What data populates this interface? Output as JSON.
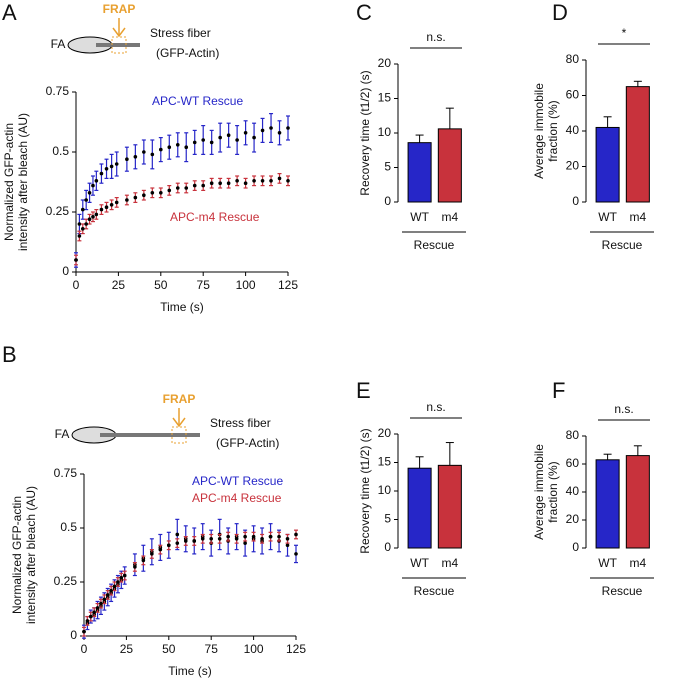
{
  "chart_data": [
    {
      "type": "scatter",
      "panel": "A",
      "xlabel": "Time (s)",
      "ylabel": [
        "Normalized GFP-actin",
        "intensity after bleach (AU)"
      ],
      "annotations": [
        "FRAP",
        "FA",
        "Stress fiber",
        "(GFP-Actin)"
      ],
      "xlim": [
        0,
        125
      ],
      "xticks": [
        0,
        25,
        50,
        75,
        100,
        125
      ],
      "ylim": [
        0,
        0.75
      ],
      "yticks": [
        0,
        0.25,
        0.5,
        0.75
      ],
      "x": [
        0,
        2,
        4,
        6,
        8,
        10,
        12,
        15,
        18,
        21,
        24,
        30,
        35,
        40,
        45,
        50,
        55,
        60,
        65,
        70,
        75,
        80,
        85,
        90,
        95,
        100,
        105,
        110,
        115,
        120,
        125
      ],
      "series": [
        {
          "name": "APC-WT Rescue",
          "color": "#2626c8",
          "values": [
            0.05,
            0.2,
            0.26,
            0.3,
            0.33,
            0.36,
            0.38,
            0.41,
            0.43,
            0.44,
            0.45,
            0.47,
            0.48,
            0.5,
            0.49,
            0.51,
            0.52,
            0.53,
            0.52,
            0.54,
            0.55,
            0.54,
            0.56,
            0.57,
            0.55,
            0.58,
            0.56,
            0.59,
            0.6,
            0.58,
            0.6
          ],
          "errors": [
            0.03,
            0.04,
            0.04,
            0.04,
            0.04,
            0.04,
            0.04,
            0.04,
            0.04,
            0.05,
            0.05,
            0.05,
            0.05,
            0.05,
            0.06,
            0.05,
            0.05,
            0.05,
            0.06,
            0.05,
            0.06,
            0.05,
            0.06,
            0.05,
            0.06,
            0.05,
            0.06,
            0.05,
            0.06,
            0.05,
            0.05
          ]
        },
        {
          "name": "APC-m4 Rescue",
          "color": "#c8323c",
          "values": [
            0.05,
            0.15,
            0.18,
            0.2,
            0.22,
            0.23,
            0.24,
            0.26,
            0.27,
            0.28,
            0.29,
            0.3,
            0.31,
            0.32,
            0.33,
            0.33,
            0.34,
            0.35,
            0.35,
            0.36,
            0.36,
            0.37,
            0.37,
            0.37,
            0.38,
            0.37,
            0.38,
            0.38,
            0.38,
            0.39,
            0.38
          ],
          "errors": [
            0.02,
            0.02,
            0.02,
            0.02,
            0.02,
            0.02,
            0.02,
            0.02,
            0.02,
            0.02,
            0.02,
            0.02,
            0.02,
            0.02,
            0.02,
            0.02,
            0.02,
            0.02,
            0.02,
            0.02,
            0.02,
            0.02,
            0.02,
            0.02,
            0.02,
            0.02,
            0.02,
            0.02,
            0.02,
            0.02,
            0.02
          ]
        }
      ]
    },
    {
      "type": "scatter",
      "panel": "B",
      "xlabel": "Time (s)",
      "ylabel": [
        "Normalized GFP-actin",
        "intensity after bleach (AU)"
      ],
      "annotations": [
        "FRAP",
        "FA",
        "Stress fiber",
        "(GFP-Actin)"
      ],
      "xlim": [
        0,
        125
      ],
      "xticks": [
        0,
        25,
        50,
        75,
        100,
        125
      ],
      "ylim": [
        0,
        0.75
      ],
      "yticks": [
        0,
        0.25,
        0.5,
        0.75
      ],
      "x": [
        0,
        2,
        4,
        6,
        8,
        10,
        12,
        14,
        16,
        18,
        20,
        22,
        24,
        30,
        35,
        40,
        45,
        50,
        55,
        60,
        65,
        70,
        75,
        80,
        85,
        90,
        95,
        100,
        105,
        110,
        115,
        120,
        125
      ],
      "series": [
        {
          "name": "APC-WT Rescue",
          "color": "#2626c8",
          "values": [
            0.02,
            0.06,
            0.09,
            0.1,
            0.12,
            0.14,
            0.16,
            0.18,
            0.2,
            0.22,
            0.24,
            0.26,
            0.28,
            0.33,
            0.36,
            0.39,
            0.41,
            0.42,
            0.47,
            0.45,
            0.44,
            0.46,
            0.43,
            0.47,
            0.44,
            0.46,
            0.43,
            0.45,
            0.44,
            0.46,
            0.44,
            0.42,
            0.38
          ],
          "errors": [
            0.03,
            0.03,
            0.03,
            0.03,
            0.04,
            0.04,
            0.04,
            0.04,
            0.04,
            0.04,
            0.04,
            0.04,
            0.04,
            0.05,
            0.06,
            0.06,
            0.06,
            0.06,
            0.07,
            0.06,
            0.06,
            0.06,
            0.06,
            0.07,
            0.06,
            0.06,
            0.06,
            0.06,
            0.06,
            0.06,
            0.05,
            0.05,
            0.04
          ]
        },
        {
          "name": "APC-m4 Rescue",
          "color": "#c8323c",
          "values": [
            0.02,
            0.07,
            0.09,
            0.11,
            0.13,
            0.15,
            0.17,
            0.19,
            0.21,
            0.23,
            0.25,
            0.27,
            0.28,
            0.32,
            0.35,
            0.38,
            0.4,
            0.42,
            0.43,
            0.44,
            0.44,
            0.45,
            0.45,
            0.45,
            0.46,
            0.45,
            0.46,
            0.46,
            0.45,
            0.46,
            0.46,
            0.45,
            0.47
          ],
          "errors": [
            0.02,
            0.02,
            0.02,
            0.02,
            0.02,
            0.02,
            0.02,
            0.02,
            0.02,
            0.02,
            0.02,
            0.02,
            0.02,
            0.02,
            0.02,
            0.02,
            0.02,
            0.02,
            0.02,
            0.02,
            0.02,
            0.02,
            0.02,
            0.02,
            0.02,
            0.02,
            0.02,
            0.02,
            0.02,
            0.02,
            0.02,
            0.02,
            0.02
          ]
        }
      ]
    },
    {
      "type": "bar",
      "panel": "C",
      "ylabel": [
        "Recovery time (t1/2) (s)"
      ],
      "group": "Rescue",
      "significance": "n.s.",
      "categories": [
        "WT",
        "m4"
      ],
      "values": [
        8.6,
        10.6
      ],
      "errors": [
        1.1,
        3.0
      ],
      "colors": [
        "#2626c8",
        "#c8323c"
      ],
      "ylim": [
        0,
        20
      ],
      "yticks": [
        0,
        5,
        10,
        15,
        20
      ]
    },
    {
      "type": "bar",
      "panel": "D",
      "ylabel": [
        "Average immobile",
        "fraction (%)"
      ],
      "group": "Rescue",
      "significance": "*",
      "categories": [
        "WT",
        "m4"
      ],
      "values": [
        42,
        65
      ],
      "errors": [
        6,
        3
      ],
      "colors": [
        "#2626c8",
        "#c8323c"
      ],
      "ylim": [
        0,
        80
      ],
      "yticks": [
        0,
        20,
        40,
        60,
        80
      ]
    },
    {
      "type": "bar",
      "panel": "E",
      "ylabel": [
        "Recovery time (t1/2) (s)"
      ],
      "group": "Rescue",
      "significance": "n.s.",
      "categories": [
        "WT",
        "m4"
      ],
      "values": [
        14,
        14.5
      ],
      "errors": [
        2,
        4
      ],
      "colors": [
        "#2626c8",
        "#c8323c"
      ],
      "ylim": [
        0,
        20
      ],
      "yticks": [
        0,
        5,
        10,
        15,
        20
      ]
    },
    {
      "type": "bar",
      "panel": "F",
      "ylabel": [
        "Average immobile",
        "fraction (%)"
      ],
      "group": "Rescue",
      "significance": "n.s.",
      "categories": [
        "WT",
        "m4"
      ],
      "values": [
        63,
        66
      ],
      "errors": [
        4,
        7
      ],
      "colors": [
        "#2626c8",
        "#c8323c"
      ],
      "ylim": [
        0,
        80
      ],
      "yticks": [
        0,
        20,
        40,
        60,
        80
      ]
    }
  ]
}
